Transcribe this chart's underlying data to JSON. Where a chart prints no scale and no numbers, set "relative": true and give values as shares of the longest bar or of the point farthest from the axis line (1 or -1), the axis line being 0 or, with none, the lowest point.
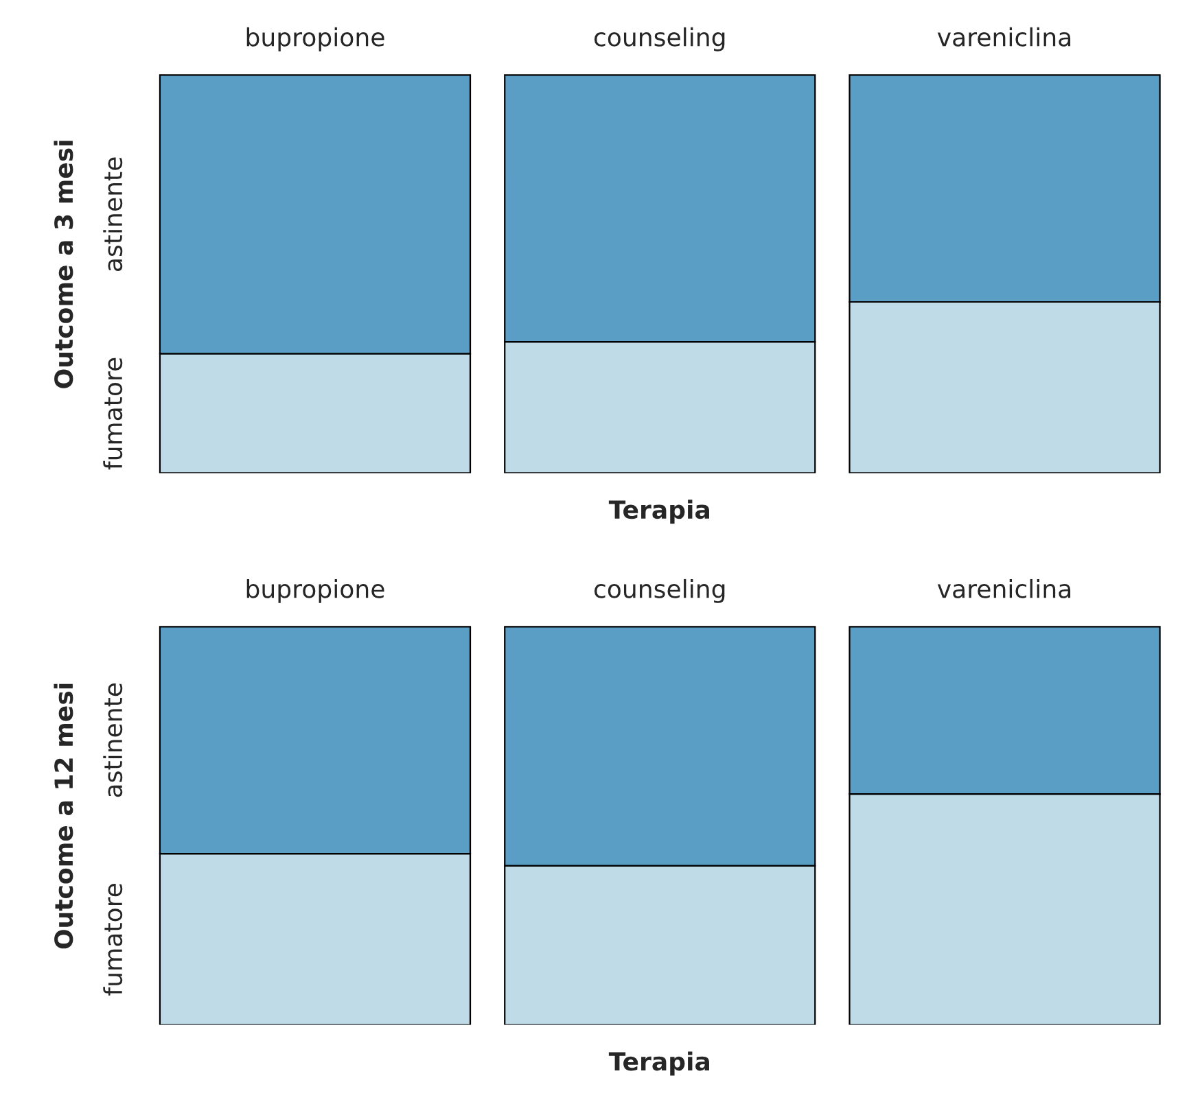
{
  "chart_data": [
    {
      "type": "bar",
      "stacked": true,
      "relative": true,
      "xlabel": "Terapia",
      "ylabel": "Outcome a 3 mesi",
      "categories": [
        "bupropione",
        "counseling",
        "vareniclina"
      ],
      "series": [
        {
          "name": "fumatore",
          "color": "#bfdbe8",
          "values": [
            0.3,
            0.33,
            0.43
          ]
        },
        {
          "name": "astinente",
          "color": "#5a9ec6",
          "values": [
            0.7,
            0.67,
            0.57
          ]
        }
      ]
    },
    {
      "type": "bar",
      "stacked": true,
      "relative": true,
      "xlabel": "Terapia",
      "ylabel": "Outcome a 12 mesi",
      "categories": [
        "bupropione",
        "counseling",
        "vareniclina"
      ],
      "series": [
        {
          "name": "fumatore",
          "color": "#bfdbe8",
          "values": [
            0.43,
            0.4,
            0.58
          ]
        },
        {
          "name": "astinente",
          "color": "#5a9ec6",
          "values": [
            0.57,
            0.6,
            0.42
          ]
        }
      ]
    }
  ]
}
